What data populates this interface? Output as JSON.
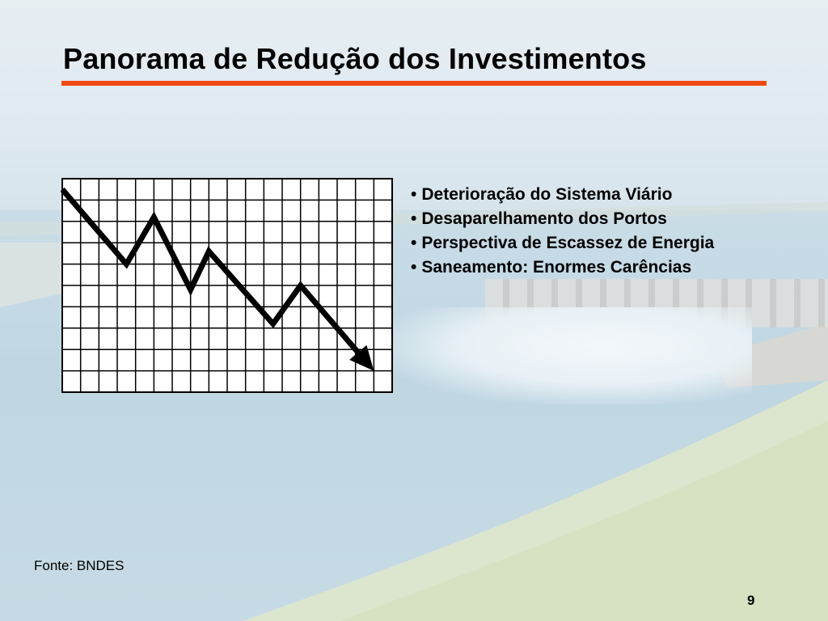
{
  "slide": {
    "title": "Panorama de Redução dos Investimentos",
    "accent_color": "#f04a12",
    "bullets": [
      "Deterioração do Sistema Viário",
      "Desaparelhamento dos Portos",
      "Perspectiva de Escassez de Energia",
      "Saneamento: Enormes Carências"
    ],
    "bullet_symbol": "•",
    "source": "Fonte: BNDES",
    "page_number": "9"
  },
  "chart_data": {
    "type": "line",
    "title": "",
    "xlabel": "",
    "ylabel": "",
    "grid": true,
    "grid_columns": 18,
    "grid_rows": 10,
    "x": [
      0,
      3.5,
      5,
      7,
      8,
      11.5,
      13,
      17
    ],
    "values": [
      9.5,
      6,
      8.2,
      4.8,
      6.6,
      3.2,
      5,
      1
    ],
    "xlim": [
      0,
      18
    ],
    "ylim": [
      0,
      10
    ],
    "line_color": "#000000",
    "arrow_end": true
  }
}
